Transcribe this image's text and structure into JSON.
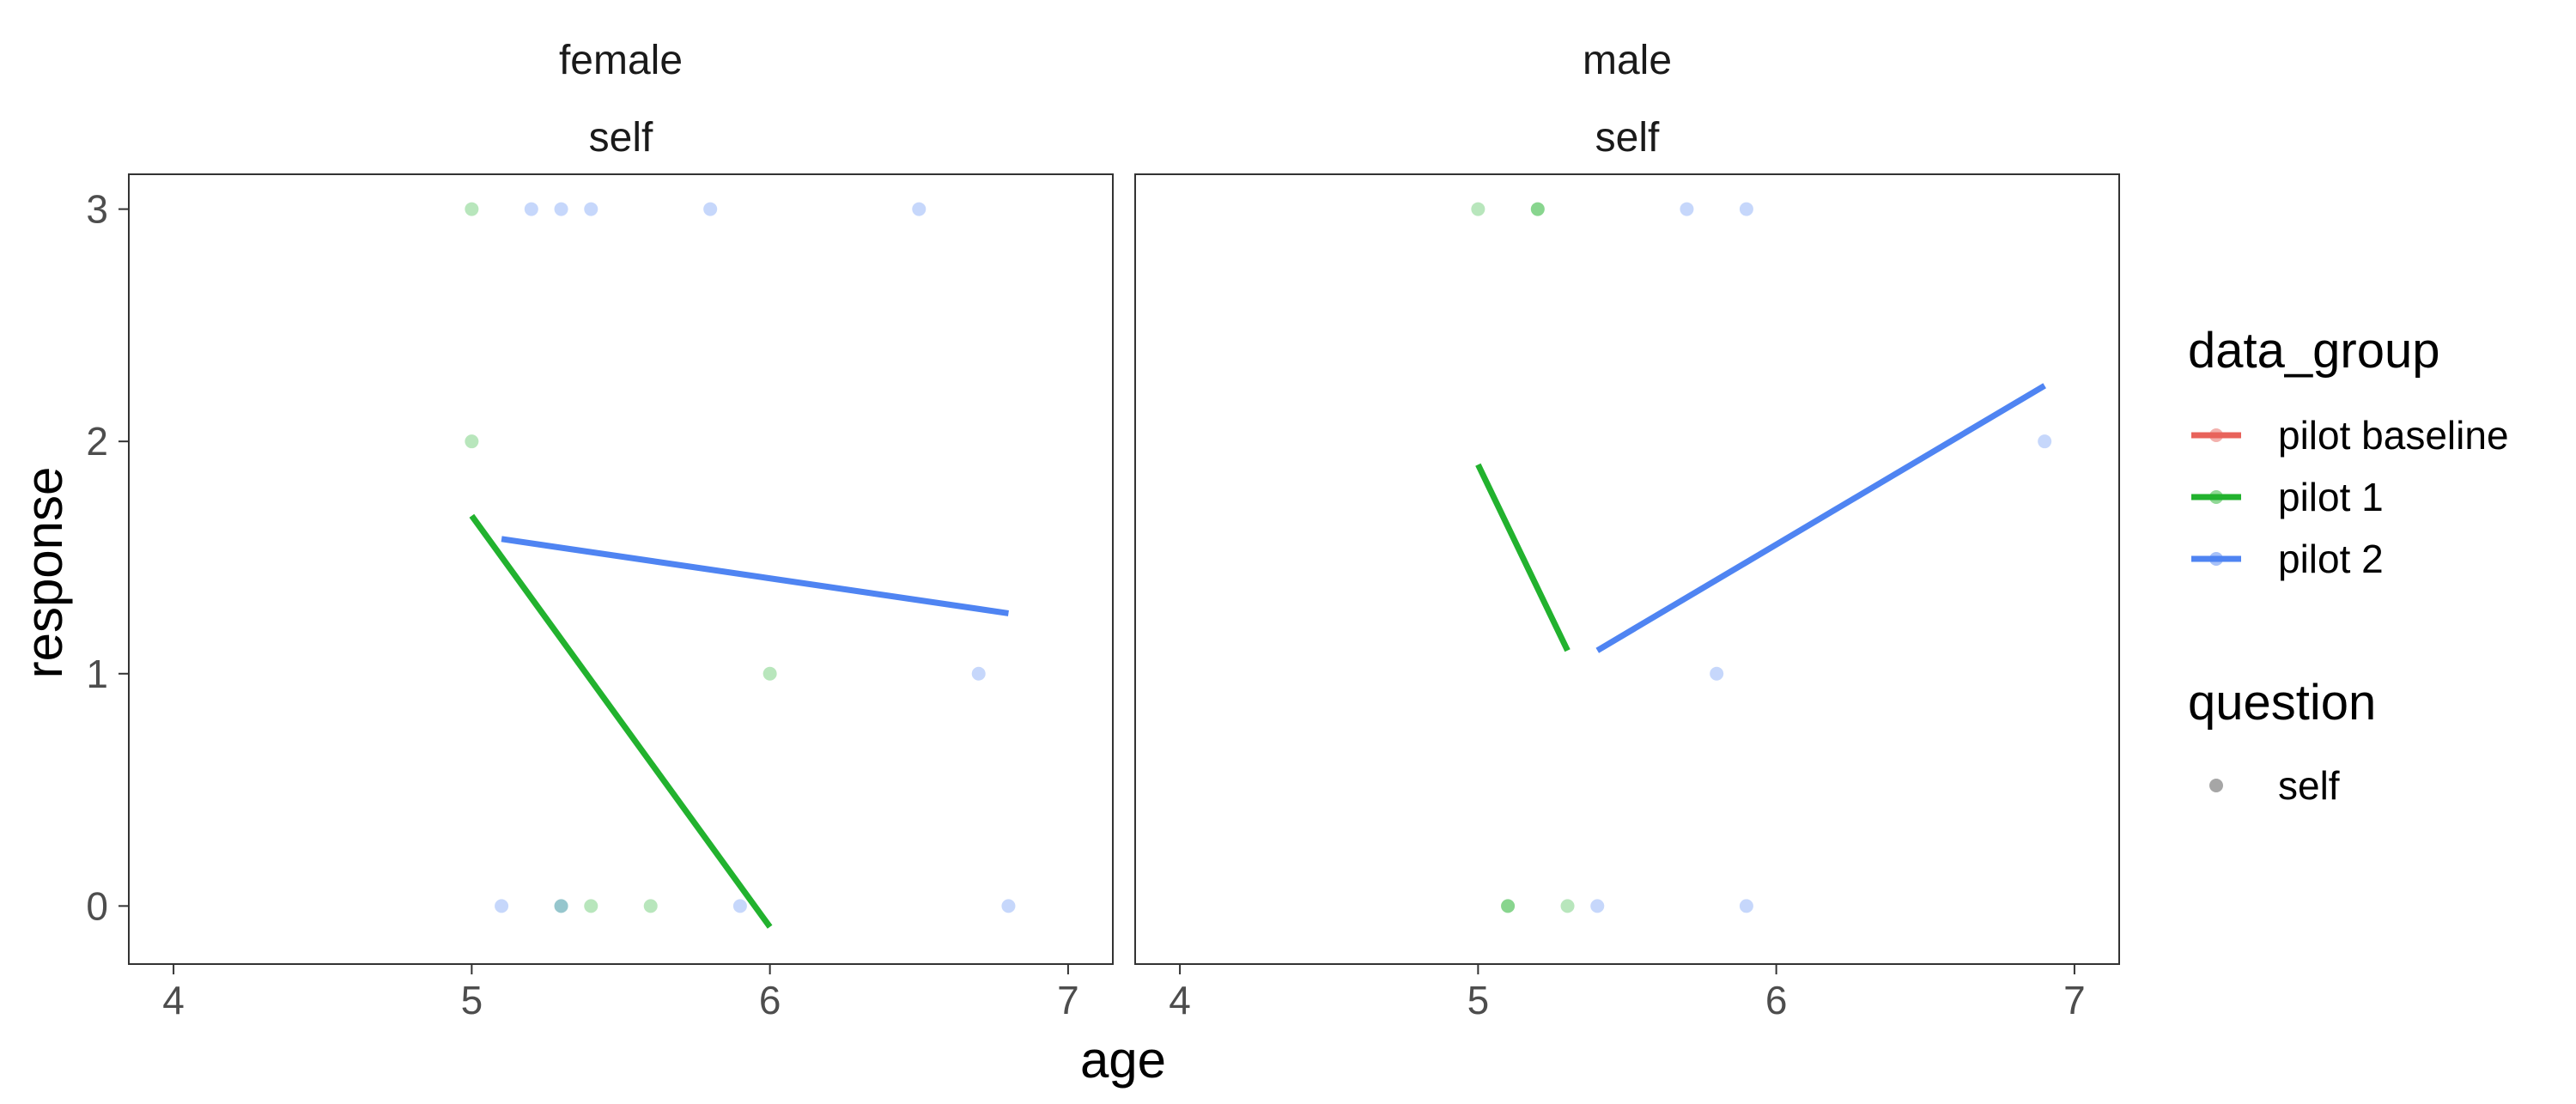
{
  "chart_data": {
    "type": "scatter",
    "xlabel": "age",
    "ylabel": "response",
    "xlim": [
      3.85,
      7.15
    ],
    "ylim": [
      -0.25,
      3.15
    ],
    "x_ticks": [
      4,
      5,
      6,
      7
    ],
    "y_ticks": [
      0,
      1,
      2,
      3
    ],
    "grid": false,
    "legend_position": "right",
    "legends": [
      {
        "title": "data_group",
        "entries": [
          {
            "name": "pilot baseline",
            "color": "#E8635B"
          },
          {
            "name": "pilot 1",
            "color": "#22B22E"
          },
          {
            "name": "pilot 2",
            "color": "#4F84F2"
          }
        ]
      },
      {
        "title": "question",
        "entries": [
          {
            "name": "self",
            "color": "#A6A6A6"
          }
        ]
      }
    ],
    "panels": [
      {
        "strip": [
          "female",
          "self"
        ],
        "points": [
          {
            "group": "pilot 1",
            "x": 5.0,
            "y": 3
          },
          {
            "group": "pilot 1",
            "x": 5.0,
            "y": 2
          },
          {
            "group": "pilot 1",
            "x": 6.0,
            "y": 1
          },
          {
            "group": "pilot 1",
            "x": 5.3,
            "y": 0
          },
          {
            "group": "pilot 1",
            "x": 5.4,
            "y": 0
          },
          {
            "group": "pilot 1",
            "x": 5.6,
            "y": 0
          },
          {
            "group": "pilot 2",
            "x": 5.2,
            "y": 3
          },
          {
            "group": "pilot 2",
            "x": 5.3,
            "y": 3
          },
          {
            "group": "pilot 2",
            "x": 5.4,
            "y": 3
          },
          {
            "group": "pilot 2",
            "x": 5.8,
            "y": 3
          },
          {
            "group": "pilot 2",
            "x": 6.5,
            "y": 3
          },
          {
            "group": "pilot 2",
            "x": 6.7,
            "y": 1
          },
          {
            "group": "pilot 2",
            "x": 5.1,
            "y": 0
          },
          {
            "group": "pilot 2",
            "x": 5.3,
            "y": 0
          },
          {
            "group": "pilot 2",
            "x": 5.9,
            "y": 0
          },
          {
            "group": "pilot 2",
            "x": 6.8,
            "y": 0
          }
        ],
        "lines": [
          {
            "group": "pilot 1",
            "x": [
              5.0,
              6.0
            ],
            "y": [
              1.68,
              -0.09
            ]
          },
          {
            "group": "pilot 2",
            "x": [
              5.1,
              6.8
            ],
            "y": [
              1.58,
              1.26
            ]
          }
        ]
      },
      {
        "strip": [
          "male",
          "self"
        ],
        "points": [
          {
            "group": "pilot 1",
            "x": 5.0,
            "y": 3
          },
          {
            "group": "pilot 1",
            "x": 5.2,
            "y": 3
          },
          {
            "group": "pilot 1",
            "x": 5.2,
            "y": 3
          },
          {
            "group": "pilot 1",
            "x": 5.1,
            "y": 0
          },
          {
            "group": "pilot 1",
            "x": 5.1,
            "y": 0
          },
          {
            "group": "pilot 1",
            "x": 5.3,
            "y": 0
          },
          {
            "group": "pilot 2",
            "x": 5.7,
            "y": 3
          },
          {
            "group": "pilot 2",
            "x": 5.9,
            "y": 3
          },
          {
            "group": "pilot 2",
            "x": 6.9,
            "y": 2
          },
          {
            "group": "pilot 2",
            "x": 5.8,
            "y": 1
          },
          {
            "group": "pilot 2",
            "x": 5.4,
            "y": 0
          },
          {
            "group": "pilot 2",
            "x": 5.9,
            "y": 0
          }
        ],
        "lines": [
          {
            "group": "pilot 1",
            "x": [
              5.0,
              5.3
            ],
            "y": [
              1.9,
              1.1
            ]
          },
          {
            "group": "pilot 2",
            "x": [
              5.4,
              6.9
            ],
            "y": [
              1.1,
              2.24
            ]
          }
        ]
      }
    ]
  }
}
